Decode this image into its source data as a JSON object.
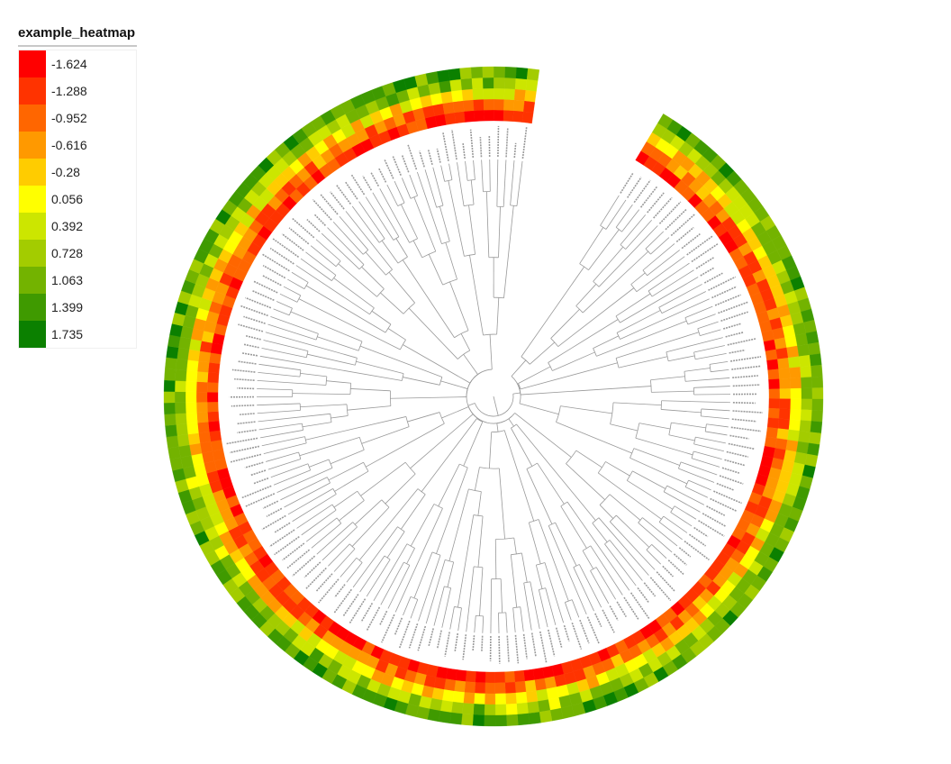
{
  "legend": {
    "title": "example_heatmap",
    "items": [
      {
        "label": "-1.624",
        "color": "#ff0000"
      },
      {
        "label": "-1.288",
        "color": "#ff3300"
      },
      {
        "label": "-0.952",
        "color": "#ff6600"
      },
      {
        "label": "-0.616",
        "color": "#ff9900"
      },
      {
        "label": "-0.28",
        "color": "#ffcc00"
      },
      {
        "label": "0.056",
        "color": "#ffff00"
      },
      {
        "label": "0.392",
        "color": "#cce600"
      },
      {
        "label": "0.728",
        "color": "#a3cc00"
      },
      {
        "label": "1.063",
        "color": "#73b300"
      },
      {
        "label": "1.399",
        "color": "#3f9a00"
      },
      {
        "label": "1.735",
        "color": "#0b8000"
      }
    ]
  },
  "diagram": {
    "type": "circular dendrogram with heatmap rings",
    "heatmap_rings": 5,
    "leaf_labels_legible": false,
    "branch_color": "#999999"
  }
}
